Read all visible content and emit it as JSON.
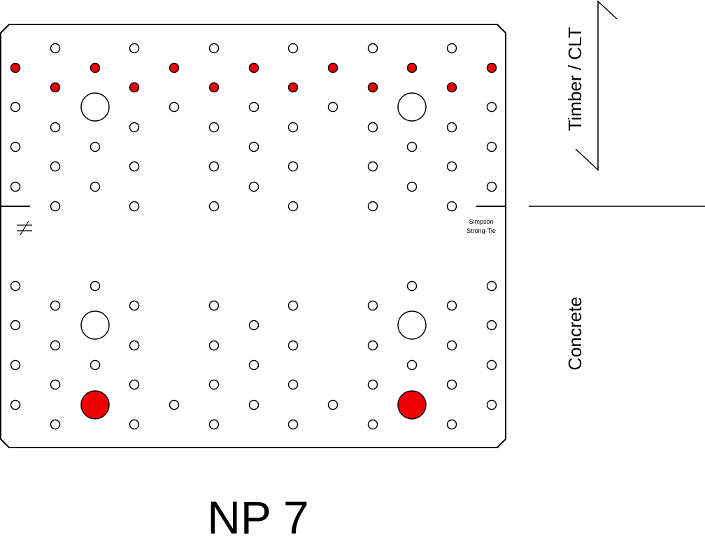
{
  "labels": {
    "timber": "Timber / CLT",
    "concrete": "Concrete",
    "brand_line1": "Simpson",
    "brand_line2": "Strong-Tie",
    "title": "NP 7"
  }
}
